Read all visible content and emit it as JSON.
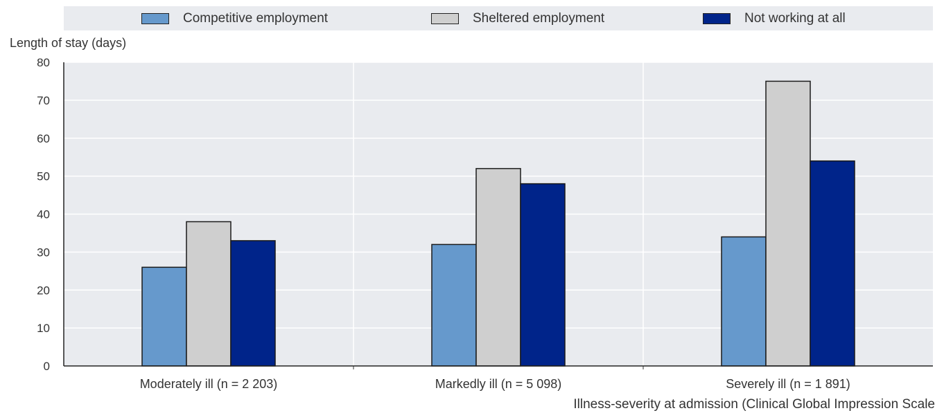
{
  "chart_data": {
    "type": "bar",
    "title": "",
    "ylabel": "Length of stay (days)",
    "xlabel": "Illness-severity at admission (Clinical Global Impression Scale",
    "categories": [
      "Moderately ill (n = 2 203)",
      "Markedly ill (n = 5 098)",
      "Severely ill (n = 1 891)"
    ],
    "series": [
      {
        "name": "Competitive employment",
        "values": [
          26,
          32,
          34
        ],
        "color": "#6699cc"
      },
      {
        "name": "Sheltered employment",
        "values": [
          38,
          52,
          75
        ],
        "color": "#cfcfcf"
      },
      {
        "name": "Not working at all",
        "values": [
          33,
          48,
          54
        ],
        "color": "#00248a"
      }
    ],
    "ylim": [
      0,
      80
    ],
    "yticks": [
      0,
      10,
      20,
      30,
      40,
      50,
      60,
      70,
      80
    ],
    "grid": true,
    "legend_position": "top"
  }
}
